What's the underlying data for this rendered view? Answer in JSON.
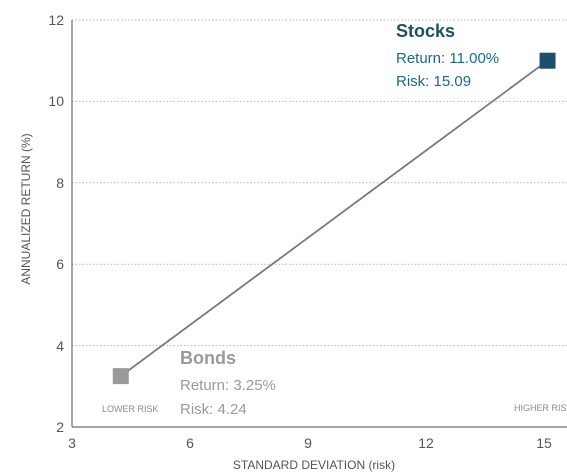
{
  "chart_data": {
    "type": "scatter",
    "xlabel": "STANDARD DEVIATION (risk)",
    "ylabel": "ANNUALIZED RETURN (%)",
    "xlim": [
      3,
      15
    ],
    "ylim": [
      2,
      12
    ],
    "xticks": [
      "3",
      "6",
      "9",
      "12",
      "15"
    ],
    "yticks": [
      "2",
      "4",
      "6",
      "8",
      "10",
      "12"
    ],
    "grid": "horizontal-dotted",
    "connect_points": true,
    "points": [
      {
        "name": "Bonds",
        "x": 4.24,
        "y": 3.25,
        "color": "#999999",
        "return_text": "Return: 3.25%",
        "risk_text": "Risk: 4.24"
      },
      {
        "name": "Stocks",
        "x": 15.09,
        "y": 11.0,
        "color": "#1b4f6e",
        "return_text": "Return: 11.00%",
        "risk_text": "Risk: 15.09"
      }
    ],
    "region_labels": {
      "low": "LOWER RISK",
      "high": "HIGHER RIS"
    }
  }
}
